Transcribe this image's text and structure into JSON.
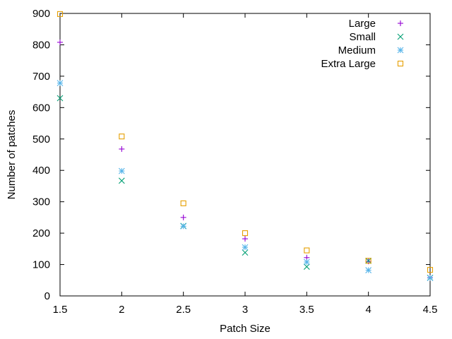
{
  "chart_data": {
    "type": "scatter",
    "xlabel": "Patch Size",
    "ylabel": "Number of patches",
    "xlim": [
      1.5,
      4.5
    ],
    "ylim": [
      0,
      900
    ],
    "xticks": [
      "1.5",
      "2",
      "2.5",
      "3",
      "3.5",
      "4",
      "4.5"
    ],
    "yticks": [
      "0",
      "100",
      "200",
      "300",
      "400",
      "500",
      "600",
      "700",
      "800",
      "900"
    ],
    "grid": false,
    "legend_position": "top-right",
    "x": [
      1.5,
      2,
      2.5,
      3,
      3.5,
      4,
      4.5
    ],
    "series": [
      {
        "name": "Large",
        "marker": "plus",
        "color": "#9400d3",
        "values": [
          808,
          468,
          250,
          182,
          122,
          110,
          58
        ]
      },
      {
        "name": "Small",
        "marker": "cross",
        "color": "#009e73",
        "values": [
          630,
          367,
          223,
          138,
          93,
          112,
          58
        ]
      },
      {
        "name": "Medium",
        "marker": "star",
        "color": "#56b4e9",
        "values": [
          678,
          398,
          222,
          155,
          108,
          82,
          57
        ]
      },
      {
        "name": "Extra Large",
        "marker": "square",
        "color": "#e69f00",
        "values": [
          898,
          508,
          295,
          200,
          145,
          112,
          83
        ]
      }
    ]
  }
}
